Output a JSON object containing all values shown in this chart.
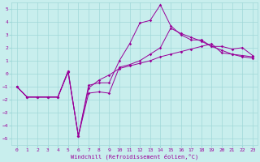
{
  "xlabel": "Windchill (Refroidissement éolien,°C)",
  "bg_color": "#c8eeed",
  "grid_color": "#a0d8d8",
  "line_color": "#990099",
  "xlim": [
    -0.5,
    23.5
  ],
  "ylim": [
    -5.5,
    5.5
  ],
  "xticks": [
    0,
    1,
    2,
    3,
    4,
    5,
    6,
    7,
    8,
    9,
    10,
    11,
    12,
    13,
    14,
    15,
    16,
    17,
    18,
    19,
    20,
    21,
    22,
    23
  ],
  "yticks": [
    -5,
    -4,
    -3,
    -2,
    -1,
    0,
    1,
    2,
    3,
    4,
    5
  ],
  "series1_x": [
    0,
    1,
    2,
    3,
    4,
    5,
    6,
    7,
    8,
    9,
    10,
    11,
    12,
    13,
    14,
    15,
    16,
    17,
    18,
    19,
    20,
    21,
    22,
    23
  ],
  "series1_y": [
    -1.0,
    -1.8,
    -1.8,
    -1.8,
    -1.8,
    0.2,
    -4.8,
    -0.9,
    -0.7,
    -0.7,
    1.0,
    2.3,
    3.9,
    4.1,
    5.3,
    3.7,
    3.0,
    2.6,
    2.6,
    2.1,
    2.1,
    1.9,
    2.0,
    1.4
  ],
  "series2_x": [
    0,
    1,
    2,
    3,
    4,
    5,
    6,
    7,
    8,
    9,
    10,
    11,
    12,
    13,
    14,
    15,
    16,
    17,
    18,
    19,
    20,
    21,
    22,
    23
  ],
  "series2_y": [
    -1.0,
    -1.8,
    -1.8,
    -1.8,
    -1.8,
    0.2,
    -4.8,
    -1.5,
    -1.4,
    -1.5,
    0.5,
    0.7,
    1.0,
    1.5,
    2.0,
    3.5,
    3.1,
    2.8,
    2.5,
    2.1,
    1.8,
    1.5,
    1.4,
    1.3
  ],
  "series3_x": [
    0,
    1,
    2,
    3,
    4,
    5,
    6,
    7,
    8,
    9,
    10,
    11,
    12,
    13,
    14,
    15,
    16,
    17,
    18,
    19,
    20,
    21,
    22,
    23
  ],
  "series3_y": [
    -1.0,
    -1.8,
    -1.8,
    -1.8,
    -1.8,
    0.1,
    -4.8,
    -1.1,
    -0.5,
    -0.1,
    0.4,
    0.6,
    0.8,
    1.0,
    1.3,
    1.5,
    1.7,
    1.9,
    2.1,
    2.3,
    1.6,
    1.5,
    1.3,
    1.2
  ],
  "figsize": [
    3.2,
    2.0
  ],
  "dpi": 100,
  "tick_fontsize": 4.5,
  "xlabel_fontsize": 5.0,
  "lw": 0.7,
  "ms": 1.8
}
